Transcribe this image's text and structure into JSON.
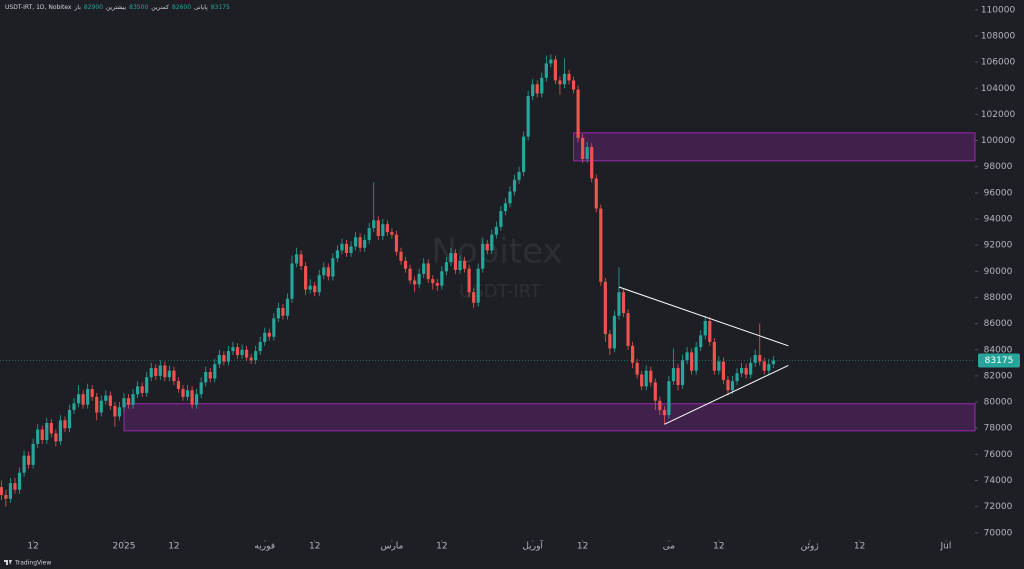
{
  "chart_data": {
    "type": "candlestick",
    "title": "USDT-IRT, 1D, Nobitex",
    "legend_labels": [
      "باز",
      "بیشترین",
      "کمترین",
      "پایانی"
    ],
    "watermark": {
      "name": "Nobitex",
      "symbol": "USDT-IRT"
    },
    "footer": "TradingView",
    "up_color": "#26a69a",
    "down_color": "#ef5350",
    "zone_color": "#9c27b0",
    "trendline_color": "#ffffff",
    "grid": false,
    "xlim": [
      3.7,
      218.4
    ],
    "xticks": [
      {
        "value": 11,
        "label": "12"
      },
      {
        "value": 31,
        "label": "2025"
      },
      {
        "value": 42,
        "label": "12"
      },
      {
        "value": 62,
        "label": "فوریه"
      },
      {
        "value": 73,
        "label": "12"
      },
      {
        "value": 90,
        "label": "مارس"
      },
      {
        "value": 101,
        "label": "12"
      },
      {
        "value": 121,
        "label": "آوریل"
      },
      {
        "value": 132,
        "label": "12"
      },
      {
        "value": 151,
        "label": "می"
      },
      {
        "value": 162,
        "label": "12"
      },
      {
        "value": 182,
        "label": "ژوئن"
      },
      {
        "value": 193,
        "label": "12"
      },
      {
        "value": 212,
        "label": "Jul"
      }
    ],
    "ylim": [
      69450,
      110750
    ],
    "yticks": [
      70000,
      72000,
      74000,
      76000,
      78000,
      80000,
      82000,
      84000,
      86000,
      88000,
      90000,
      92000,
      94000,
      96000,
      98000,
      100000,
      102000,
      104000,
      106000,
      108000,
      110000
    ],
    "x": [
      4,
      5,
      6,
      7,
      8,
      9,
      10,
      11,
      12,
      13,
      14,
      15,
      16,
      17,
      18,
      19,
      20,
      21,
      22,
      23,
      24,
      25,
      26,
      27,
      28,
      29,
      30,
      31,
      32,
      33,
      34,
      35,
      36,
      37,
      38,
      39,
      40,
      41,
      42,
      43,
      44,
      45,
      46,
      47,
      48,
      49,
      50,
      51,
      52,
      53,
      54,
      55,
      56,
      57,
      58,
      59,
      60,
      61,
      62,
      63,
      64,
      65,
      66,
      67,
      68,
      69,
      70,
      71,
      72,
      73,
      74,
      75,
      76,
      77,
      78,
      79,
      80,
      81,
      82,
      83,
      84,
      85,
      86,
      87,
      88,
      89,
      90,
      91,
      92,
      93,
      94,
      95,
      96,
      97,
      98,
      99,
      100,
      101,
      102,
      103,
      104,
      105,
      106,
      107,
      108,
      109,
      110,
      111,
      112,
      113,
      114,
      115,
      116,
      117,
      118,
      119,
      120,
      121,
      122,
      123,
      124,
      125,
      126,
      127,
      128,
      129,
      130,
      131,
      132,
      133,
      134,
      135,
      136,
      137,
      138,
      139,
      140,
      141,
      142,
      143,
      144,
      145,
      146,
      147,
      148,
      149,
      150,
      151,
      152,
      153,
      154,
      155,
      156,
      157,
      158,
      159,
      160,
      161,
      162,
      163,
      164,
      165,
      166,
      167,
      168,
      169,
      170,
      171,
      172,
      173,
      174
    ],
    "open": [
      73500,
      72900,
      72600,
      73800,
      73300,
      74600,
      75900,
      75200,
      76800,
      77900,
      77100,
      78400,
      77600,
      77000,
      78600,
      78000,
      79400,
      79900,
      80600,
      79800,
      81000,
      80400,
      79200,
      80100,
      80500,
      79700,
      78900,
      79600,
      80300,
      79800,
      80600,
      81200,
      80700,
      81900,
      82600,
      82000,
      82800,
      81900,
      82400,
      81600,
      81000,
      80400,
      80900,
      79800,
      80600,
      81500,
      82300,
      81800,
      82900,
      83600,
      83100,
      83900,
      84200,
      83600,
      84000,
      83400,
      83200,
      83900,
      84600,
      85300,
      85000,
      86400,
      87200,
      86600,
      87900,
      90600,
      91300,
      90400,
      88600,
      88900,
      88400,
      89700,
      90300,
      89600,
      91000,
      91600,
      92100,
      91400,
      91900,
      92600,
      91800,
      92400,
      93300,
      93900,
      92700,
      93600,
      93000,
      92800,
      91500,
      90800,
      90200,
      89300,
      89000,
      89800,
      90600,
      89400,
      89100,
      88900,
      90000,
      90700,
      91400,
      90100,
      90800,
      90200,
      88400,
      87600,
      90200,
      92100,
      91600,
      92800,
      93400,
      94600,
      95200,
      96100,
      97000,
      97600,
      100300,
      103400,
      104300,
      103600,
      104800,
      105900,
      106200,
      104600,
      104300,
      105100,
      104600,
      103900,
      100200,
      98600,
      99500,
      97100,
      94800,
      89200,
      85200,
      84100,
      86600,
      88400,
      86800,
      84300,
      83000,
      82100,
      81200,
      82400,
      81500,
      80100,
      79400,
      79000,
      81600,
      82600,
      81300,
      83200,
      83800,
      82400,
      84200,
      85100,
      86200,
      84600,
      82400,
      83100,
      81700,
      80900,
      81600,
      82200,
      82600,
      82100,
      83000,
      83600,
      83100,
      82400,
      82900
    ],
    "high": [
      74000,
      73300,
      74200,
      74200,
      75000,
      76300,
      76200,
      77200,
      78300,
      78200,
      78800,
      78700,
      77900,
      79000,
      78900,
      79800,
      80300,
      81300,
      80900,
      81400,
      81300,
      80700,
      80500,
      80900,
      80800,
      80000,
      80000,
      80700,
      80600,
      81000,
      81600,
      81500,
      82300,
      83000,
      82900,
      83200,
      83100,
      82800,
      82700,
      81900,
      81300,
      81300,
      81200,
      81000,
      81900,
      82700,
      82600,
      83300,
      84000,
      83900,
      84300,
      84600,
      84500,
      84400,
      84300,
      83700,
      84300,
      85000,
      85700,
      85600,
      86800,
      87600,
      87500,
      88300,
      91200,
      91800,
      91600,
      90700,
      89400,
      89200,
      90100,
      90700,
      90600,
      91400,
      92000,
      92500,
      92400,
      92300,
      93000,
      92900,
      92800,
      93700,
      96800,
      94200,
      94000,
      93900,
      93300,
      93100,
      91800,
      91100,
      90500,
      89600,
      90200,
      91000,
      90900,
      89700,
      89400,
      90400,
      91100,
      91800,
      91700,
      91200,
      91100,
      90500,
      88700,
      90600,
      92500,
      92400,
      93200,
      93800,
      95000,
      95600,
      96500,
      97400,
      98000,
      100700,
      103800,
      104700,
      104600,
      105200,
      106500,
      106600,
      106500,
      104900,
      106300,
      105400,
      104900,
      104200,
      100500,
      99900,
      99800,
      97400,
      95100,
      89500,
      85500,
      87000,
      90300,
      88700,
      87100,
      84600,
      83300,
      82400,
      82800,
      82700,
      81800,
      80400,
      79700,
      82000,
      84100,
      82900,
      83600,
      84200,
      84100,
      84600,
      85500,
      86600,
      86500,
      84900,
      83500,
      83400,
      82000,
      82000,
      82600,
      83000,
      82900,
      83400,
      84000,
      86000,
      83400,
      83300,
      83500
    ],
    "low": [
      72500,
      72000,
      72300,
      73000,
      73000,
      74300,
      74900,
      74900,
      76500,
      76800,
      76800,
      77300,
      76600,
      76700,
      77700,
      77700,
      79100,
      79600,
      79500,
      79500,
      80100,
      78600,
      78900,
      79800,
      79400,
      78100,
      78600,
      79300,
      79500,
      79500,
      80300,
      80400,
      80400,
      81600,
      81700,
      81700,
      81600,
      81600,
      81300,
      80700,
      80100,
      80100,
      79500,
      79500,
      80300,
      81200,
      81500,
      81500,
      82600,
      82800,
      82800,
      83600,
      83300,
      83300,
      83100,
      82900,
      82900,
      83600,
      84300,
      84700,
      84700,
      86100,
      86300,
      86300,
      87600,
      90300,
      90100,
      88200,
      88300,
      88100,
      88100,
      89400,
      89300,
      89300,
      90700,
      91300,
      91100,
      91100,
      91600,
      91500,
      91500,
      92100,
      93000,
      92400,
      92400,
      92700,
      92500,
      91200,
      90500,
      89900,
      89000,
      88400,
      88700,
      89500,
      89100,
      88600,
      88500,
      88600,
      89700,
      90400,
      89800,
      89800,
      89900,
      88000,
      87200,
      87300,
      89900,
      91300,
      91300,
      92500,
      93100,
      94300,
      94900,
      95800,
      96700,
      97300,
      100000,
      103100,
      103300,
      103300,
      104500,
      105600,
      104300,
      103500,
      104000,
      104300,
      103600,
      99900,
      98300,
      98300,
      96800,
      94500,
      88900,
      84600,
      83600,
      83800,
      86300,
      86500,
      84000,
      82600,
      81800,
      80900,
      80900,
      81200,
      79400,
      79000,
      78300,
      78700,
      81300,
      80900,
      81000,
      82900,
      82100,
      82100,
      83900,
      84800,
      84300,
      82100,
      82100,
      81400,
      80500,
      80600,
      81300,
      81900,
      81800,
      81800,
      82700,
      82800,
      82100,
      82100,
      82600
    ],
    "close": [
      72900,
      72600,
      73800,
      73300,
      74600,
      75900,
      75200,
      76800,
      77900,
      77100,
      78400,
      77600,
      77000,
      78600,
      78000,
      79400,
      79900,
      80600,
      79800,
      81000,
      80400,
      79200,
      80100,
      80500,
      79700,
      78900,
      79600,
      80300,
      79800,
      80600,
      81200,
      80700,
      81900,
      82600,
      82000,
      82800,
      81900,
      82400,
      81600,
      81000,
      80400,
      80900,
      79800,
      80600,
      81500,
      82300,
      81800,
      82900,
      83600,
      83100,
      83900,
      84200,
      83600,
      84000,
      83400,
      83200,
      83900,
      84600,
      85300,
      85000,
      86400,
      87200,
      86600,
      87900,
      90600,
      91300,
      90400,
      88600,
      88900,
      88400,
      89700,
      90300,
      89600,
      91000,
      91600,
      92100,
      91400,
      91900,
      92600,
      91800,
      92400,
      93300,
      93900,
      92700,
      93600,
      93000,
      92800,
      91500,
      90800,
      90200,
      89300,
      89000,
      89800,
      90600,
      89400,
      89100,
      88900,
      90000,
      90700,
      91400,
      90100,
      90800,
      90200,
      88400,
      87600,
      90200,
      92100,
      91600,
      92800,
      93400,
      94600,
      95200,
      96100,
      97000,
      97600,
      100300,
      103400,
      104300,
      103600,
      104800,
      105900,
      106200,
      104600,
      104300,
      105100,
      104600,
      103900,
      100200,
      98600,
      99500,
      97100,
      94800,
      89200,
      85200,
      84100,
      86600,
      88400,
      86800,
      84300,
      83000,
      82100,
      81200,
      82400,
      81500,
      80100,
      79400,
      79000,
      81600,
      82600,
      81300,
      83200,
      83800,
      82400,
      84200,
      85100,
      86200,
      84600,
      82400,
      83100,
      81700,
      80900,
      81600,
      82200,
      82600,
      82100,
      83000,
      83600,
      83100,
      82400,
      82900,
      83175
    ],
    "zones": [
      {
        "x0": 130,
        "y": [
          98450,
          100590
        ]
      },
      {
        "x0": 31,
        "y": [
          77800,
          79870
        ]
      }
    ],
    "trendlines": [
      {
        "x": [
          140,
          177.3
        ],
        "y": [
          88800,
          84300
        ]
      },
      {
        "x": [
          150,
          177.3
        ],
        "y": [
          78300,
          82800
        ]
      }
    ]
  }
}
